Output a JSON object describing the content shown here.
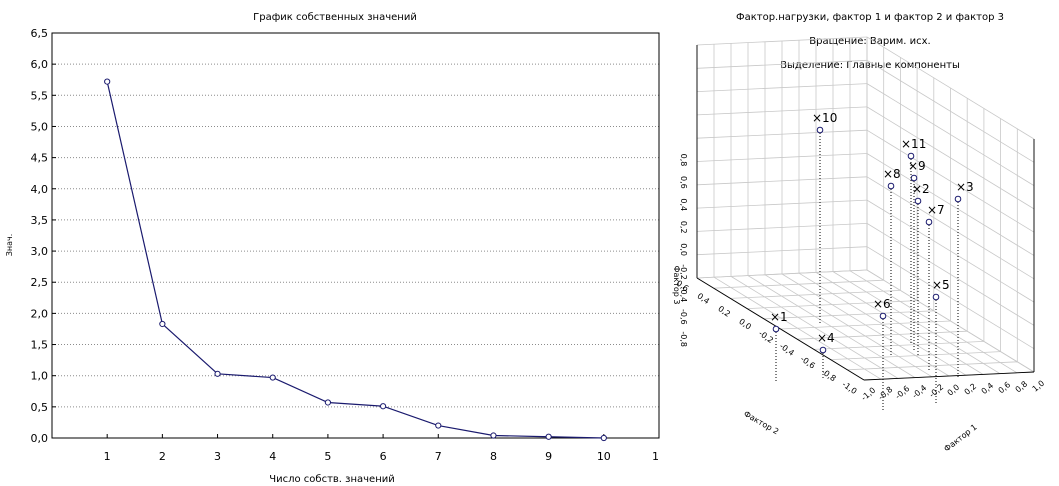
{
  "chart_data": [
    {
      "type": "line",
      "title": "График собственных значений",
      "xlabel": "Число собств. значений",
      "ylabel": "Знач.",
      "xlim": [
        0,
        11
      ],
      "ylim": [
        0,
        6.5
      ],
      "x_ticks": [
        "1",
        "2",
        "3",
        "4",
        "5",
        "6",
        "7",
        "8",
        "9",
        "10",
        "11"
      ],
      "y_ticks": [
        "0,0",
        "0,5",
        "1,0",
        "1,5",
        "2,0",
        "2,5",
        "3,0",
        "3,5",
        "4,0",
        "4,5",
        "5,0",
        "5,5",
        "6,0",
        "6,5"
      ],
      "grid": true,
      "series": [
        {
          "x": [
            1,
            2,
            3,
            4,
            5,
            6,
            7,
            8,
            9,
            10
          ],
          "values": [
            5.72,
            1.83,
            1.03,
            0.97,
            0.57,
            0.51,
            0.2,
            0.04,
            0.02,
            0.0
          ],
          "color": "#1a1a6e"
        }
      ]
    },
    {
      "type": "scatter",
      "title": [
        "Фактор.нагрузки, фактор 1 и фактор  2 и фактор  3",
        "Вращение: Варим. исх.",
        "Выделение: Главные компоненты"
      ],
      "xlabel": "Фактор 1",
      "ylabel": "Фактор 2",
      "zlabel": "Фактор 3",
      "z_ticks": [
        "0,8",
        "0,6",
        "0,4",
        "0,2",
        "0,0",
        "-0,2",
        "-0,4",
        "-0,6",
        "-0,8"
      ],
      "y_ticks": [
        "0,6",
        "0,4",
        "0,2",
        "0,0",
        "-0,2",
        "-0,4",
        "-0,6",
        "-0,8",
        "-1,0"
      ],
      "x_ticks": [
        "-1,0",
        "-0,8",
        "-0,6",
        "-0,4",
        "-0,2",
        "0,0",
        "0,2",
        "0,4",
        "0,6",
        "0,8",
        "1,0"
      ],
      "points": [
        {
          "label": "x1"
        },
        {
          "label": "x2"
        },
        {
          "label": "x3"
        },
        {
          "label": "x4"
        },
        {
          "label": "x5"
        },
        {
          "label": "x6"
        },
        {
          "label": "x7"
        },
        {
          "label": "x8"
        },
        {
          "label": "x9"
        },
        {
          "label": "x10"
        },
        {
          "label": "x11"
        }
      ]
    }
  ]
}
